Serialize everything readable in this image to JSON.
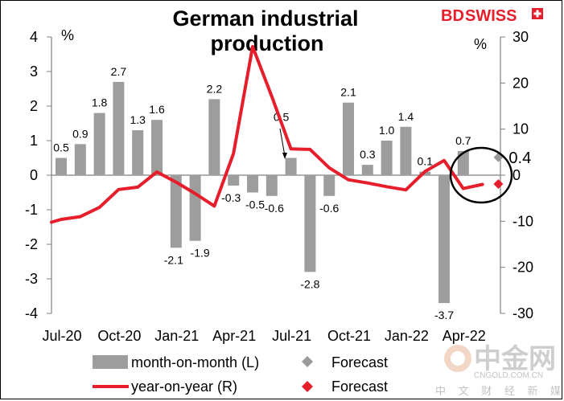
{
  "brand": {
    "logo_bold": "BD",
    "logo_rest": "SWISS"
  },
  "watermark": {
    "main": "中金网",
    "sub": "CNGOLD.COM.CN",
    "tagline": "中 文 财 经 新 媒 体"
  },
  "chart_data": {
    "type": "bar+line",
    "title": [
      "German industrial",
      "production"
    ],
    "left_axis": {
      "unit": "%",
      "ylim": [
        -4,
        4
      ],
      "ticks": [
        4,
        3,
        2,
        1,
        0,
        -1,
        -2,
        -3,
        -4
      ]
    },
    "right_axis": {
      "unit": "%",
      "ylim": [
        -30,
        30
      ],
      "ticks": [
        30,
        20,
        10,
        0,
        -10,
        -20,
        -30
      ]
    },
    "x_tick_labels": [
      "Jul-20",
      "Oct-20",
      "Jan-21",
      "Apr-21",
      "Jul-21",
      "Oct-21",
      "Jan-22",
      "Apr-22"
    ],
    "bar_series": {
      "name": "month-on-month (L)",
      "values": [
        0.5,
        0.9,
        1.8,
        2.7,
        1.3,
        1.6,
        -2.1,
        -1.9,
        2.2,
        -0.3,
        -0.5,
        -0.6,
        0.5,
        -2.8,
        -0.6,
        2.1,
        0.3,
        1.0,
        1.4,
        0.1,
        -3.7,
        0.7
      ],
      "labels": [
        "0.5",
        "0.9",
        "1.8",
        "2.7",
        "1.3",
        "1.6",
        "-2.1",
        "-1.9",
        "2.2",
        "-0.3",
        "-0.5",
        "-0.6",
        "0.5",
        "-2.8",
        "-0.6",
        "2.1",
        "0.3",
        "1.0",
        "1.4",
        "0.1",
        "-3.7",
        "0.7"
      ]
    },
    "line_series": {
      "name": "year-on-year (R)",
      "values": [
        -10.2,
        -9.6,
        -9.0,
        -7.0,
        -3.1,
        -2.6,
        0.7,
        -1.5,
        -4.0,
        -6.7,
        4.7,
        27.9,
        17.1,
        5.7,
        5.6,
        1.6,
        -1.0,
        -1.7,
        -2.5,
        -3.2,
        0.8,
        3.2,
        -2.9,
        -2.0
      ],
      "x_index": [
        -0.5,
        0,
        1,
        2,
        3,
        4,
        5,
        6,
        7,
        8,
        9,
        10,
        11,
        12,
        13,
        14,
        15,
        16,
        17,
        18,
        19,
        20,
        21,
        22
      ]
    },
    "forecasts": [
      {
        "name": "Forecast",
        "axis": "left",
        "series": "month-on-month",
        "value": 0.4,
        "label": "0.4",
        "x_index": 23,
        "color": "#9a9a9a"
      },
      {
        "name": "Forecast",
        "axis": "right",
        "series": "year-on-year",
        "value": -2.0,
        "x_index": 23,
        "color": "#e61e2b"
      }
    ],
    "annotations": [
      "forecast-circle",
      "arrow-to-jul21-bar"
    ],
    "colors": {
      "bar": "#9d9d9d",
      "line": "#e61e2b",
      "forecast_mom": "#9a9a9a",
      "forecast_yoy": "#e61e2b"
    },
    "legend": [
      {
        "label": "month-on-month (L)",
        "kind": "bar"
      },
      {
        "label": "Forecast",
        "kind": "diamond-grey"
      },
      {
        "label": "year-on-year (R)",
        "kind": "line"
      },
      {
        "label": "Forecast",
        "kind": "diamond-red"
      }
    ]
  }
}
